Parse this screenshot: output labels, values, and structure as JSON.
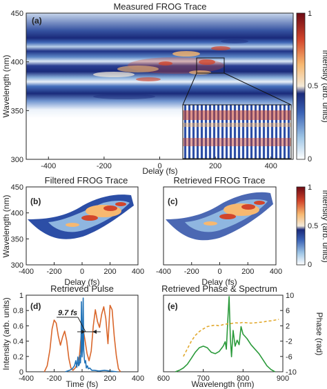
{
  "colors": {
    "deep_blue": "#1a2a7a",
    "mid_blue": "#3a62b5",
    "light_blue": "#9fc6e6",
    "white": "#ffffff",
    "orange": "#f7b870",
    "red": "#d2452b",
    "dark_red": "#6d0a14",
    "pulse_orange": "#d9662a",
    "pulse_blue": "#2173b8",
    "phase_gold": "#e1a82c",
    "spectrum_green": "#2a9a3a"
  },
  "colorbar": {
    "label": "Intensity (arb. units)",
    "ticks": [
      "1",
      "0.5",
      "0"
    ]
  },
  "chart_data": [
    {
      "panel": "(a)",
      "type": "heatmap",
      "title": "Measured FROG Trace",
      "xlabel": "Delay (fs)",
      "ylabel": "Wavelength (nm)",
      "xlim": [
        -480,
        480
      ],
      "ylim": [
        300,
        450
      ],
      "xticks": [
        "-400",
        "-200",
        "0",
        "200",
        "400"
      ],
      "yticks": [
        "450",
        "400",
        "350",
        "300"
      ],
      "inset": "zoom-in of the region near delay 200 fs, wavelength 400 nm"
    },
    {
      "panel": "(b)",
      "type": "heatmap",
      "title": "Filtered FROG Trace",
      "xlabel": "Delay (fs)",
      "ylabel": "Wavelength (nm)",
      "xlim": [
        -400,
        400
      ],
      "ylim": [
        300,
        450
      ],
      "xticks": [
        "-400",
        "-200",
        "0",
        "200",
        "400"
      ],
      "yticks": [
        "450",
        "400",
        "350",
        "300"
      ]
    },
    {
      "panel": "(c)",
      "type": "heatmap",
      "title": "Retrieved FROG Trace",
      "xlabel": "Delay (fs)",
      "ylabel": "",
      "xlim": [
        -400,
        400
      ],
      "ylim": [
        300,
        450
      ],
      "xticks": [
        "-400",
        "-200",
        "0",
        "200",
        "400"
      ],
      "yticks": []
    },
    {
      "panel": "(d)",
      "type": "line",
      "title": "Retrieved Pulse",
      "xlabel": "Time (fs)",
      "ylabel": "Intensity (arb. units)",
      "xlim": [
        -400,
        400
      ],
      "ylim": [
        0,
        1
      ],
      "xticks": [
        "-400",
        "-200",
        "0",
        "200",
        "400"
      ],
      "yticks": [
        "0",
        "0.2",
        "0.4",
        "0.6",
        "0.8",
        "1"
      ],
      "annotation": "9.7 fs",
      "series": [
        {
          "color": "#d9662a",
          "x": [
            -270,
            -250,
            -230,
            -215,
            -200,
            -185,
            -170,
            -155,
            -140,
            -125,
            -110,
            -95,
            -80,
            -65,
            -50,
            -35,
            -20,
            -10,
            0,
            10,
            20,
            35,
            50,
            65,
            80,
            95,
            110,
            125,
            140,
            155,
            170,
            185,
            200,
            215,
            230,
            245,
            260,
            275
          ],
          "y": [
            0.0,
            0.08,
            0.3,
            0.58,
            0.7,
            0.66,
            0.48,
            0.36,
            0.47,
            0.55,
            0.42,
            0.18,
            0.05,
            0.02,
            0.05,
            0.1,
            0.2,
            0.42,
            0.58,
            0.55,
            0.44,
            0.25,
            0.15,
            0.28,
            0.62,
            0.84,
            0.68,
            0.6,
            0.78,
            0.88,
            0.72,
            0.38,
            0.9,
            0.84,
            0.48,
            0.22,
            0.04,
            0.0
          ]
        },
        {
          "color": "#2173b8",
          "x": [
            -120,
            -90,
            -70,
            -55,
            -45,
            -38,
            -30,
            -25,
            -20,
            -16,
            -12,
            -8,
            -5,
            -3,
            0,
            3,
            5,
            8,
            12,
            16,
            20,
            25,
            30,
            38,
            45,
            55,
            70,
            90,
            120,
            160,
            200,
            250
          ],
          "y": [
            0.0,
            0.02,
            0.04,
            0.08,
            0.15,
            0.06,
            0.2,
            0.08,
            0.1,
            0.22,
            0.12,
            0.3,
            0.95,
            0.6,
            0.2,
            0.28,
            0.7,
            1.0,
            0.3,
            0.18,
            0.12,
            0.15,
            0.05,
            0.08,
            0.04,
            0.05,
            0.02,
            0.02,
            0.01,
            0.02,
            0.01,
            0.0
          ]
        }
      ]
    },
    {
      "panel": "(e)",
      "type": "line",
      "title": "Retrieved Phase & Spectrum",
      "xlabel": "Wavelength (nm)",
      "ylabel": "Phase (rad)",
      "xlim": [
        600,
        900
      ],
      "ylim": [
        -10,
        10
      ],
      "xticks": [
        "600",
        "700",
        "800",
        "900"
      ],
      "yticks": [
        "10",
        "6",
        "2",
        "-2",
        "-6",
        "-10"
      ],
      "series": [
        {
          "color": "#2a9a3a",
          "x": [
            630,
            640,
            650,
            660,
            670,
            680,
            690,
            700,
            710,
            720,
            730,
            740,
            750,
            755,
            758,
            762,
            765,
            768,
            771,
            775,
            780,
            785,
            790,
            795,
            800,
            810,
            820,
            830,
            840,
            850,
            860,
            870,
            880
          ],
          "y": [
            0.0,
            0.02,
            0.05,
            0.1,
            0.18,
            0.26,
            0.32,
            0.34,
            0.32,
            0.26,
            0.24,
            0.27,
            0.34,
            0.4,
            0.3,
            0.72,
            1.0,
            0.45,
            0.2,
            0.55,
            0.34,
            0.42,
            0.36,
            0.6,
            0.5,
            0.44,
            0.36,
            0.3,
            0.24,
            0.16,
            0.08,
            0.03,
            0.0
          ]
        },
        {
          "color": "#e1a82c",
          "dash": true,
          "x": [
            650,
            660,
            670,
            680,
            690,
            700,
            710,
            720,
            730,
            740,
            750,
            760,
            770,
            780,
            790,
            800,
            810,
            820,
            830,
            840,
            850,
            860,
            870,
            880,
            890
          ],
          "y": [
            -6.0,
            -4.0,
            -2.0,
            -0.5,
            0.5,
            1.2,
            1.8,
            2.0,
            2.2,
            2.0,
            2.3,
            2.5,
            2.6,
            2.8,
            2.7,
            2.9,
            2.8,
            2.7,
            2.8,
            2.9,
            3.0,
            3.2,
            3.3,
            3.5,
            3.7
          ]
        }
      ]
    }
  ]
}
